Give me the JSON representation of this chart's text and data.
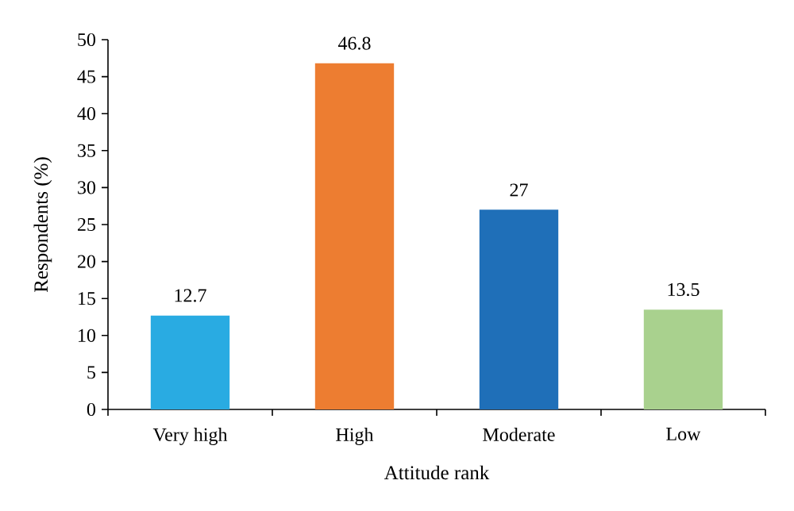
{
  "chart_data": {
    "type": "bar",
    "xlabel": "Attitude rank",
    "ylabel": "Respondents (%)",
    "categories": [
      "Very high",
      "High",
      "Moderate",
      "Low"
    ],
    "values": [
      12.7,
      46.8,
      27,
      13.5
    ],
    "colors": [
      "#29abe2",
      "#ed7d31",
      "#1f6fb8",
      "#a9d18e"
    ],
    "ylim": [
      0,
      50
    ],
    "yticks": [
      0,
      5,
      10,
      15,
      20,
      25,
      30,
      35,
      40,
      45,
      50
    ],
    "data_labels": true
  }
}
